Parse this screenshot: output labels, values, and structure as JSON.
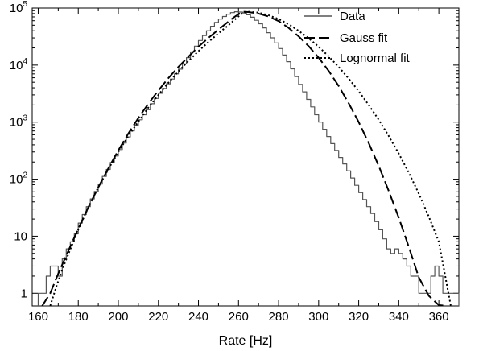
{
  "chart_data": {
    "type": "line",
    "title": "",
    "xlabel": "Rate [Hz]",
    "ylabel": "",
    "xlim": [
      157,
      370
    ],
    "ylim": [
      0.6,
      100000
    ],
    "yscale": "log",
    "x_ticks": [
      160,
      180,
      200,
      220,
      240,
      260,
      280,
      300,
      320,
      340,
      360
    ],
    "x_tick_labels": [
      "160",
      "180",
      "200",
      "220",
      "240",
      "260",
      "280",
      "300",
      "320",
      "340",
      "360"
    ],
    "y_ticks": [
      1,
      10,
      100,
      1000,
      10000,
      100000
    ],
    "y_tick_labels": [
      {
        "base": "1",
        "exp": ""
      },
      {
        "base": "10",
        "exp": ""
      },
      {
        "base": "10",
        "exp": "2"
      },
      {
        "base": "10",
        "exp": "3"
      },
      {
        "base": "10",
        "exp": "4"
      },
      {
        "base": "10",
        "exp": "5"
      }
    ],
    "grid": false,
    "legend_position": "top-right",
    "series": [
      {
        "name": "Data",
        "style": "step",
        "color": "#555555",
        "x": [
          161,
          163,
          165,
          167,
          169,
          171,
          173,
          175,
          177,
          179,
          181,
          183,
          185,
          187,
          189,
          191,
          193,
          195,
          197,
          199,
          201,
          203,
          205,
          207,
          209,
          211,
          213,
          215,
          217,
          219,
          221,
          223,
          225,
          227,
          229,
          231,
          233,
          235,
          237,
          239,
          241,
          243,
          245,
          247,
          249,
          251,
          253,
          255,
          257,
          259,
          261,
          263,
          265,
          267,
          269,
          271,
          273,
          275,
          277,
          279,
          281,
          283,
          285,
          287,
          289,
          291,
          293,
          295,
          297,
          299,
          301,
          303,
          305,
          307,
          309,
          311,
          313,
          315,
          317,
          319,
          321,
          323,
          325,
          327,
          329,
          331,
          333,
          335,
          337,
          339,
          341,
          343,
          345,
          347,
          349,
          351,
          353,
          355,
          357,
          359,
          361,
          363,
          365,
          367,
          369
        ],
        "y": [
          1,
          1,
          2,
          3,
          3,
          2,
          4,
          6,
          8,
          11,
          17,
          24,
          33,
          45,
          61,
          82,
          112,
          148,
          196,
          255,
          330,
          430,
          550,
          700,
          880,
          1100,
          1350,
          1650,
          2100,
          2600,
          3200,
          3900,
          4700,
          5700,
          7000,
          8500,
          10500,
          13500,
          17000,
          21500,
          27000,
          33000,
          40000,
          48000,
          56000,
          64000,
          71000,
          78000,
          83000,
          86000,
          85000,
          82000,
          76000,
          69000,
          61000,
          53000,
          45000,
          37000,
          30000,
          24500,
          19500,
          15000,
          11500,
          8600,
          6300,
          4600,
          3400,
          2500,
          1850,
          1350,
          1000,
          750,
          560,
          420,
          320,
          240,
          185,
          140,
          105,
          78,
          58,
          44,
          33,
          25,
          18,
          13,
          9,
          6,
          5,
          6,
          5,
          4,
          3,
          2,
          2,
          1,
          1,
          1,
          2,
          3,
          2,
          1,
          1,
          1,
          1
        ]
      },
      {
        "name": "Gauss fit",
        "style": "dashed",
        "color": "#000000",
        "x": [
          162,
          166,
          170,
          175,
          180,
          185,
          190,
          195,
          200,
          205,
          210,
          215,
          220,
          225,
          230,
          235,
          240,
          245,
          250,
          255,
          258,
          262,
          265,
          270,
          275,
          280,
          285,
          290,
          295,
          300,
          305,
          310,
          315,
          320,
          325,
          330,
          335,
          340,
          345,
          350,
          355,
          360,
          364
        ],
        "y": [
          0.6,
          1,
          2.2,
          5.5,
          13.5,
          32,
          72,
          155,
          320,
          630,
          1180,
          2100,
          3600,
          5900,
          9300,
          14000,
          21000,
          30000,
          42000,
          58000,
          70000,
          86000,
          85000,
          80000,
          71000,
          59000,
          45000,
          32000,
          21500,
          13500,
          7900,
          4300,
          2150,
          1000,
          430,
          170,
          62,
          21,
          6.5,
          1.9,
          0.9,
          0.62,
          0.6
        ]
      },
      {
        "name": "Lognormal fit",
        "style": "dotted",
        "color": "#000000",
        "x": [
          166,
          169,
          172,
          175,
          180,
          185,
          190,
          195,
          200,
          205,
          210,
          215,
          220,
          225,
          230,
          235,
          240,
          245,
          250,
          255,
          258,
          262,
          265,
          270,
          275,
          280,
          285,
          290,
          295,
          300,
          305,
          310,
          315,
          320,
          325,
          330,
          335,
          340,
          345,
          350,
          355,
          360,
          366
        ],
        "y": [
          0.6,
          1.3,
          2.6,
          4.8,
          13,
          32,
          72,
          150,
          300,
          570,
          1020,
          1800,
          3000,
          4900,
          7700,
          11800,
          17500,
          25500,
          36000,
          50000,
          62000,
          82000,
          86000,
          83000,
          75000,
          64000,
          52000,
          40000,
          29500,
          21000,
          14200,
          9300,
          5800,
          3500,
          2000,
          1100,
          570,
          280,
          130,
          56,
          22,
          8,
          0.6
        ]
      }
    ]
  }
}
